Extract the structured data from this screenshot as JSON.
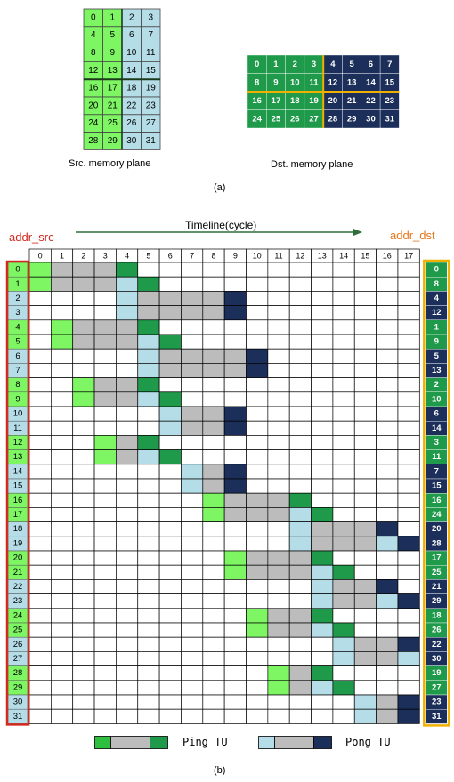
{
  "colors": {
    "ping_bright": "#7ef562",
    "ping_dark": "#1f9a4a",
    "pong_light": "#b5dde8",
    "pong_dark": "#1b2f5a",
    "wait_gray": "#bcbcbc",
    "light_gray": "#e0e0e0",
    "orange": "#f0b000",
    "red": "#d12a1f",
    "arrow": "#2f6e3a"
  },
  "src_plane": {
    "caption": "Src. memory plane",
    "left_cells": [
      [
        0,
        1
      ],
      [
        4,
        5
      ],
      [
        8,
        9
      ],
      [
        12,
        13
      ],
      [
        16,
        17
      ],
      [
        20,
        21
      ],
      [
        24,
        25
      ],
      [
        28,
        29
      ]
    ],
    "right_cells": [
      [
        2,
        3
      ],
      [
        6,
        7
      ],
      [
        10,
        11
      ],
      [
        14,
        15
      ],
      [
        18,
        19
      ],
      [
        22,
        23
      ],
      [
        26,
        27
      ],
      [
        30,
        31
      ]
    ]
  },
  "dst_plane": {
    "caption": "Dst. memory plane",
    "rows": [
      [
        0,
        1,
        2,
        3,
        4,
        5,
        6,
        7
      ],
      [
        8,
        9,
        10,
        11,
        12,
        13,
        14,
        15
      ],
      [
        16,
        17,
        18,
        19,
        20,
        21,
        22,
        23
      ],
      [
        24,
        25,
        26,
        27,
        28,
        29,
        30,
        31
      ]
    ]
  },
  "label_a": "(a)",
  "label_b": "(b)",
  "timeline": {
    "title": "Timeline(cycle)",
    "left_label": "addr_src",
    "right_label": "addr_dst",
    "columns": [
      "0",
      "1",
      "2",
      "3",
      "4",
      "5",
      "6",
      "7",
      "8",
      "9",
      "10",
      "11",
      "12",
      "13",
      "14",
      "15",
      "16",
      "17"
    ],
    "addr_src": [
      "0",
      "1",
      "2",
      "3",
      "4",
      "5",
      "6",
      "7",
      "8",
      "9",
      "10",
      "11",
      "12",
      "13",
      "14",
      "15",
      "16",
      "17",
      "18",
      "19",
      "20",
      "21",
      "22",
      "23",
      "24",
      "25",
      "26",
      "27",
      "28",
      "29",
      "30",
      "31"
    ],
    "addr_dst": [
      "0",
      "8",
      "4",
      "12",
      "1",
      "9",
      "5",
      "13",
      "2",
      "10",
      "6",
      "14",
      "3",
      "11",
      "7",
      "15",
      "16",
      "24",
      "20",
      "28",
      "17",
      "25",
      "21",
      "29",
      "18",
      "26",
      "22",
      "30",
      "19",
      "27",
      "23",
      "31"
    ],
    "rows_cells": [
      "pgggd",
      "pgggld",
      "lggggd",
      "lggggd",
      "pgggd",
      "pgggld",
      "lggggd",
      "lggggd",
      "pggd",
      "pggld",
      "lggd",
      "lggd",
      "pgd",
      "pgld",
      "lgd",
      "lgd",
      "pgggd",
      "pgggld",
      "lgggd",
      "lgggld",
      "pgggd",
      "pgggld",
      "lggd",
      "lggld",
      "pggd",
      "pggld",
      "lggd",
      "lggld",
      "pgd",
      "pgld",
      "lgd",
      "lgd"
    ],
    "rows_start": [
      0,
      0,
      4,
      4,
      1,
      1,
      5,
      5,
      2,
      2,
      6,
      6,
      3,
      3,
      7,
      7,
      8,
      8,
      12,
      12,
      9,
      9,
      13,
      13,
      10,
      10,
      14,
      14,
      11,
      11,
      15,
      15
    ],
    "dst_color": [
      "g",
      "g",
      "d",
      "d",
      "g",
      "g",
      "d",
      "d",
      "g",
      "g",
      "d",
      "d",
      "g",
      "g",
      "d",
      "d",
      "g",
      "g",
      "d",
      "d",
      "g",
      "g",
      "d",
      "d",
      "g",
      "g",
      "d",
      "d",
      "g",
      "g",
      "d",
      "d"
    ]
  },
  "legend": {
    "ping_label": "Ping TU",
    "pong_label": "Pong TU"
  }
}
